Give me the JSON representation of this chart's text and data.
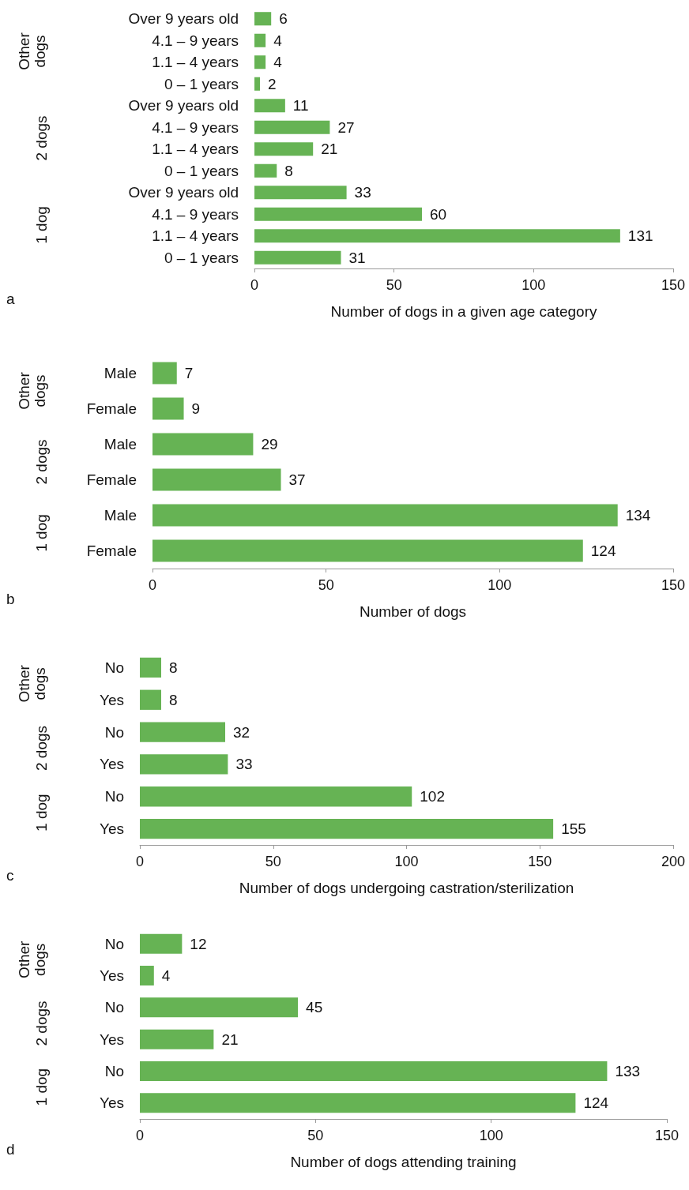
{
  "chart_data": [
    {
      "type": "bar",
      "orientation": "horizontal",
      "categories": [
        "Over 9 years old",
        "4.1 – 9 years",
        "1.1 – 4 years",
        "0 – 1 years",
        "Over 9 years old",
        "4.1 – 9 years",
        "1.1 – 4 years",
        "0 – 1 years",
        "Over 9 years old",
        "4.1 – 9 years",
        "1.1 – 4 years",
        "0 – 1 years"
      ],
      "values": [
        6,
        4,
        4,
        2,
        11,
        27,
        21,
        8,
        33,
        60,
        131,
        31
      ],
      "color": "#66b354",
      "xlim": [
        0,
        150
      ],
      "xticks": [
        0,
        50,
        100,
        150
      ],
      "xlabel": "Number of dogs in a given age category",
      "annotations": [
        "a",
        "Other dogs",
        "2 dogs",
        "1 dog"
      ],
      "data_labels": true,
      "grid": false
    },
    {
      "type": "bar",
      "orientation": "horizontal",
      "categories": [
        "Male",
        "Female",
        "Male",
        "Female",
        "Male",
        "Female"
      ],
      "values": [
        7,
        9,
        29,
        37,
        134,
        124
      ],
      "color": "#66b354",
      "xlim": [
        0,
        150
      ],
      "xticks": [
        0,
        50,
        100,
        150
      ],
      "xlabel": "Number of dogs",
      "annotations": [
        "b",
        "Other dogs",
        "2 dogs",
        "1 dog"
      ],
      "data_labels": true,
      "grid": false
    },
    {
      "type": "bar",
      "orientation": "horizontal",
      "categories": [
        "No",
        "Yes",
        "No",
        "Yes",
        "No",
        "Yes"
      ],
      "values": [
        8,
        8,
        32,
        33,
        102,
        155
      ],
      "color": "#66b354",
      "xlim": [
        0,
        200
      ],
      "xticks": [
        0,
        50,
        100,
        150,
        200
      ],
      "xlabel": "Number of dogs undergoing castration/sterilization",
      "annotations": [
        "c",
        "Other dogs",
        "2 dogs",
        "1 dog"
      ],
      "data_labels": true,
      "grid": false
    },
    {
      "type": "bar",
      "orientation": "horizontal",
      "categories": [
        "No",
        "Yes",
        "No",
        "Yes",
        "No",
        "Yes"
      ],
      "values": [
        12,
        4,
        45,
        21,
        133,
        124
      ],
      "color": "#66b354",
      "xlim": [
        0,
        150
      ],
      "xticks": [
        0,
        50,
        100,
        150
      ],
      "xlabel": "Number of dogs attending training",
      "annotations": [
        "d",
        "Other dogs",
        "2 dogs",
        "1 dog"
      ],
      "data_labels": true,
      "grid": false
    }
  ]
}
